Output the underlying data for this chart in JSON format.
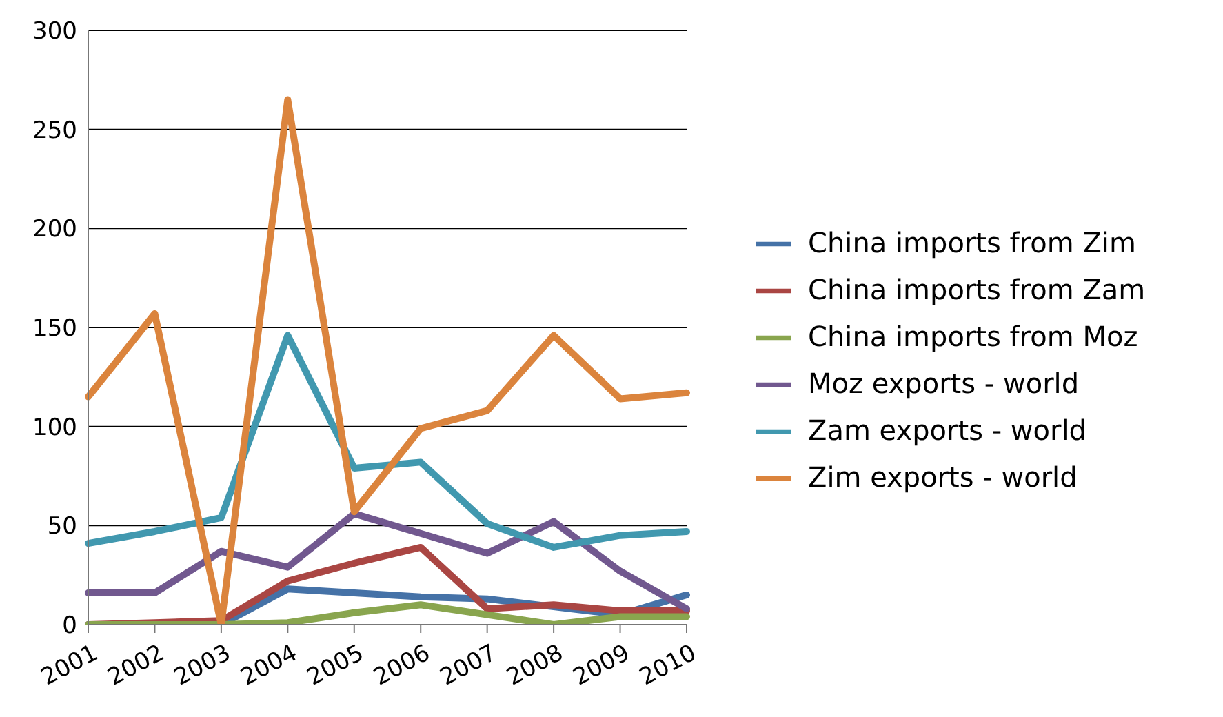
{
  "chart_data": {
    "type": "line",
    "categories": [
      "2001",
      "2002",
      "2003",
      "2004",
      "2005",
      "2006",
      "2007",
      "2008",
      "2009",
      "2010"
    ],
    "series": [
      {
        "name": "China imports from Zim",
        "color": "#4572a7",
        "values": [
          0,
          0,
          0,
          18,
          16,
          14,
          13,
          9,
          5,
          15
        ]
      },
      {
        "name": "China imports from Zam",
        "color": "#aa4643",
        "values": [
          0,
          1,
          2,
          22,
          31,
          39,
          8,
          10,
          7,
          7
        ]
      },
      {
        "name": "China imports from Moz",
        "color": "#89a54e",
        "values": [
          0,
          0,
          0,
          1,
          6,
          10,
          5,
          0,
          4,
          4
        ]
      },
      {
        "name": "Moz exports - world",
        "color": "#71588f",
        "values": [
          16,
          16,
          37,
          29,
          56,
          46,
          36,
          52,
          27,
          8
        ]
      },
      {
        "name": "Zam exports - world",
        "color": "#4198af",
        "values": [
          41,
          47,
          54,
          146,
          79,
          82,
          51,
          39,
          45,
          47
        ]
      },
      {
        "name": "Zim exports - world",
        "color": "#db843d",
        "values": [
          115,
          157,
          0,
          265,
          57,
          99,
          108,
          146,
          114,
          117
        ]
      }
    ],
    "ylim": [
      0,
      300
    ],
    "yticks": [
      0,
      50,
      100,
      150,
      200,
      250,
      300
    ],
    "grid": "y",
    "legend": "right",
    "marker": "none",
    "line_style": "solid"
  }
}
